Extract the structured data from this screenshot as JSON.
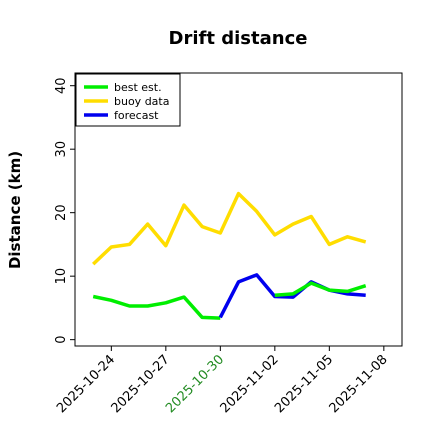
{
  "chart_data": {
    "type": "line",
    "title": "Drift distance",
    "xlabel": "",
    "ylabel": "Distance (km)",
    "ylim": [
      -1,
      42
    ],
    "yticks": [
      0,
      10,
      20,
      30,
      40
    ],
    "xticks": [
      {
        "label": "2025-10-24",
        "x": 1,
        "color": "#000000"
      },
      {
        "label": "2025-10-27",
        "x": 4,
        "color": "#000000"
      },
      {
        "label": "2025-10-30",
        "x": 7,
        "color": "#228B22"
      },
      {
        "label": "2025-11-02",
        "x": 10,
        "color": "#000000"
      },
      {
        "label": "2025-11-05",
        "x": 13,
        "color": "#000000"
      },
      {
        "label": "2025-11-08",
        "x": 16,
        "color": "#000000"
      }
    ],
    "xlim": [
      -1,
      17
    ],
    "legend_placement": "top-left",
    "grid": false,
    "series": [
      {
        "name": "best est.",
        "color": "#00ee00",
        "x": [
          0,
          1,
          2,
          3,
          4,
          5,
          6,
          7
        ],
        "y": [
          6.8,
          6.2,
          5.3,
          5.3,
          5.8,
          6.7,
          3.5,
          3.4
        ]
      },
      {
        "name": "buoy data",
        "color": "#ffdd00",
        "x": [
          0,
          1,
          2,
          3,
          4,
          5,
          6,
          7,
          8,
          9,
          10,
          11,
          12,
          13,
          14,
          15
        ],
        "y": [
          11.9,
          14.6,
          15.0,
          18.2,
          14.8,
          21.2,
          17.8,
          16.8,
          23.0,
          20.2,
          16.5,
          18.2,
          19.4,
          15.0,
          16.2,
          15.4
        ]
      },
      {
        "name": "forecast",
        "color": "#0000ee",
        "x": [
          7,
          8,
          9,
          10,
          11,
          12,
          13,
          14,
          15
        ],
        "y": [
          3.5,
          9.1,
          10.2,
          6.8,
          6.7,
          9.1,
          7.8,
          7.2,
          7.0
        ]
      },
      {
        "name": "best est.",
        "color": "#00ee00",
        "x": [
          10,
          11,
          12,
          13,
          14,
          15
        ],
        "y": [
          7.0,
          7.2,
          8.9,
          7.8,
          7.6,
          8.5
        ]
      }
    ]
  }
}
